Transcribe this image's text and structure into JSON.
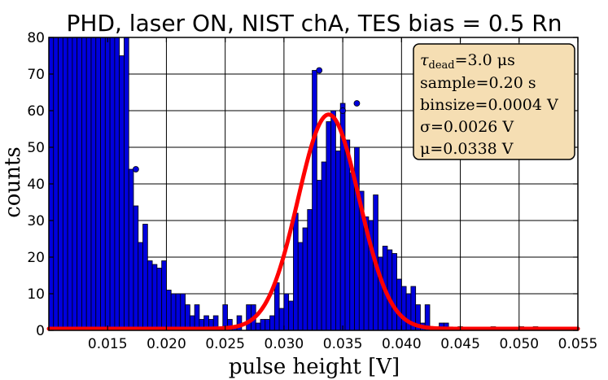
{
  "chart_data": {
    "type": "bar",
    "title": "PHD, laser ON, NIST chA, TES bias = 0.5 Rn",
    "xlabel": "pulse height [V]",
    "ylabel": "counts",
    "xlim": [
      0.01,
      0.055
    ],
    "ylim": [
      0,
      80
    ],
    "xticks": [
      0.015,
      0.02,
      0.025,
      0.03,
      0.035,
      0.04,
      0.045,
      0.05,
      0.055
    ],
    "xtick_labels": [
      "0.015",
      "0.020",
      "0.025",
      "0.030",
      "0.035",
      "0.040",
      "0.045",
      "0.050",
      "0.055"
    ],
    "yticks": [
      0,
      10,
      20,
      30,
      40,
      50,
      60,
      70,
      80
    ],
    "ytick_labels": [
      "0",
      "10",
      "20",
      "30",
      "40",
      "50",
      "60",
      "70",
      "80"
    ],
    "grid": true,
    "bin_width": 0.0004,
    "bar_color": "#0000dd",
    "fit_color": "#ff0000",
    "bin_left_edges": [
      0.01,
      0.0104,
      0.0108,
      0.0112,
      0.0116,
      0.012,
      0.0124,
      0.0128,
      0.0132,
      0.0136,
      0.014,
      0.0144,
      0.0148,
      0.0152,
      0.0156,
      0.016,
      0.0164,
      0.0168,
      0.0172,
      0.0176,
      0.018,
      0.0184,
      0.0188,
      0.0192,
      0.0196,
      0.02,
      0.0204,
      0.0208,
      0.0212,
      0.0216,
      0.022,
      0.0224,
      0.0228,
      0.0232,
      0.0236,
      0.024,
      0.0244,
      0.0248,
      0.0252,
      0.0256,
      0.026,
      0.0264,
      0.0268,
      0.0272,
      0.0276,
      0.028,
      0.0284,
      0.0288,
      0.0292,
      0.0296,
      0.03,
      0.0304,
      0.0308,
      0.0312,
      0.0316,
      0.032,
      0.0324,
      0.0328,
      0.0332,
      0.0336,
      0.034,
      0.0344,
      0.0348,
      0.0352,
      0.0356,
      0.036,
      0.0364,
      0.0368,
      0.0372,
      0.0376,
      0.038,
      0.0384,
      0.0388,
      0.0392,
      0.0396,
      0.04,
      0.0404,
      0.0408,
      0.0412,
      0.0416,
      0.042,
      0.0424,
      0.0428,
      0.0432,
      0.0436,
      0.044,
      0.0444,
      0.0448,
      0.0452,
      0.0456,
      0.046,
      0.0464,
      0.0468,
      0.0472,
      0.0476,
      0.048,
      0.0484,
      0.0488,
      0.0492,
      0.0496,
      0.05,
      0.0504,
      0.0508,
      0.0512,
      0.0516,
      0.052,
      0.0524,
      0.0528,
      0.0532,
      0.0536,
      0.054,
      0.0544
    ],
    "counts": [
      80,
      80,
      80,
      80,
      80,
      80,
      80,
      80,
      80,
      80,
      80,
      80,
      80,
      80,
      80,
      75,
      80,
      44,
      34,
      24,
      29,
      19,
      18,
      17,
      19,
      11,
      10,
      10,
      10,
      7,
      4,
      7,
      3,
      4,
      3,
      4,
      0,
      7,
      3,
      1,
      4,
      0,
      7,
      7,
      2,
      3,
      3,
      4,
      13,
      6,
      10,
      8,
      32,
      24,
      28,
      33,
      71,
      41,
      46,
      57,
      60,
      49,
      62,
      52,
      43,
      50,
      38,
      31,
      30,
      37,
      20,
      23,
      22,
      21,
      14,
      12,
      10,
      12,
      7,
      2,
      7,
      1,
      1,
      2,
      2,
      0,
      0,
      1,
      0,
      0,
      0,
      0,
      0,
      0,
      1,
      0,
      0,
      0,
      0,
      0,
      1,
      0,
      0,
      1,
      0,
      0,
      0,
      0,
      0,
      0,
      0,
      0
    ],
    "overflow_markers": [
      [
        0.0172,
        44
      ],
      [
        0.0328,
        71
      ],
      [
        0.0348,
        60
      ],
      [
        0.036,
        62
      ]
    ],
    "fit": {
      "type": "gaussian",
      "sigma": 0.0026,
      "mu": 0.0338,
      "amplitude": 58.5
    }
  },
  "info_box": {
    "line1": "τ_dead = 3.0 μs",
    "line2": "sample = 0.20 s",
    "line3": "binsize = 0.0004 V",
    "line4": "σ = 0.0026 V",
    "line5": "μ = 0.0338 V",
    "tau_symbol": "τ",
    "tau_sub": "dead",
    "tau_value": "=3.0 μs",
    "sample": "sample=0.20 s",
    "binsize": "binsize=0.0004 V",
    "sigma": "σ=0.0026 V",
    "mu": "μ=0.0338 V",
    "background_color": "#f5deb3"
  }
}
